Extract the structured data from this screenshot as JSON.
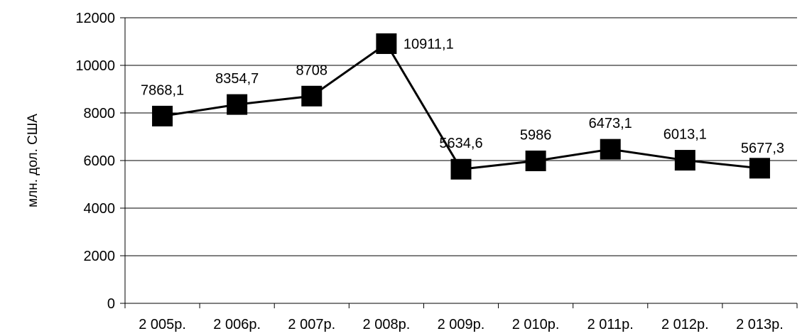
{
  "chart_data": {
    "type": "line",
    "title": "",
    "xlabel": "",
    "ylabel": "млн. дол. США",
    "categories": [
      "2 005р.",
      "2 006р.",
      "2 007р.",
      "2 008р.",
      "2 009р.",
      "2 010р.",
      "2 011р.",
      "2 012р.",
      "2 013р."
    ],
    "series": [
      {
        "values": [
          7868.1,
          8354.7,
          8708,
          10911.1,
          5634.6,
          5986,
          6473.1,
          6013.1,
          5677.3
        ],
        "data_labels": [
          "7868,1",
          "8354,7",
          "8708",
          "10911,1",
          "5634,6",
          "5986",
          "6473,1",
          "6013,1",
          "5677,3"
        ]
      }
    ],
    "ylim": [
      0,
      12000
    ],
    "yticks": [
      "0",
      "2000",
      "4000",
      "6000",
      "8000",
      "10000",
      "12000"
    ],
    "grid": true,
    "legend": "none",
    "marker": "square",
    "line_color": "#000000"
  }
}
